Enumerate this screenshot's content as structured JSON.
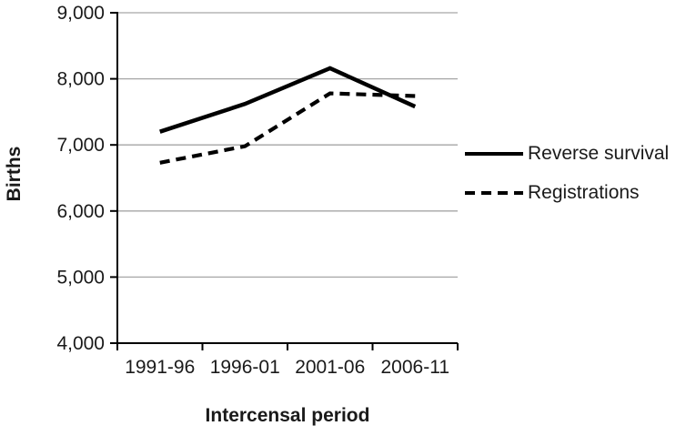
{
  "chart_data": {
    "type": "line",
    "xlabel": "Intercensal period",
    "ylabel": "Births",
    "categories": [
      "1991-96",
      "1996-01",
      "2001-06",
      "2006-11"
    ],
    "series": [
      {
        "name": "Reverse survival",
        "style": "solid",
        "values": [
          7200,
          7620,
          8160,
          7580
        ]
      },
      {
        "name": "Registrations",
        "style": "dashed",
        "values": [
          6730,
          6980,
          7780,
          7740
        ]
      }
    ],
    "ylim": [
      4000,
      9000
    ],
    "ytick_step": 1000,
    "ytick_labels": [
      "4,000",
      "5,000",
      "6,000",
      "7,000",
      "8,000",
      "9,000"
    ],
    "grid": "horizontal",
    "legend_position": "right",
    "colors": {
      "line": "#000000",
      "grid": "#a6a6a6",
      "text": "#1a1a1a",
      "background": "#ffffff"
    }
  }
}
